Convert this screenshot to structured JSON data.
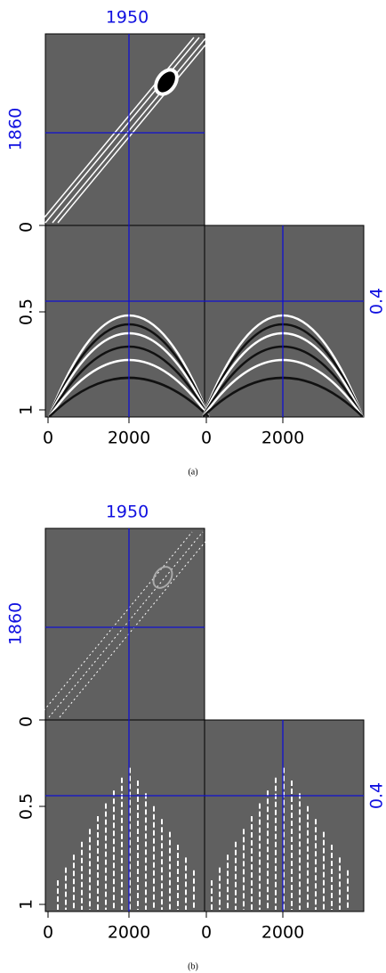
{
  "panels": [
    {
      "crosshair": {
        "top": "1950",
        "left": "1860",
        "right": "0.4"
      },
      "y_ticks": [
        "0",
        "0.5",
        "1"
      ],
      "x_ticks": [
        "0",
        "2000",
        "0",
        "2000"
      ],
      "caption": "(a)"
    },
    {
      "crosshair": {
        "top": "1950",
        "left": "1860",
        "right": "0.4"
      },
      "y_ticks": [
        "0",
        "0.5",
        "1"
      ],
      "x_ticks": [
        "0",
        "2000",
        "0",
        "2000"
      ],
      "caption": "(b)"
    }
  ]
}
